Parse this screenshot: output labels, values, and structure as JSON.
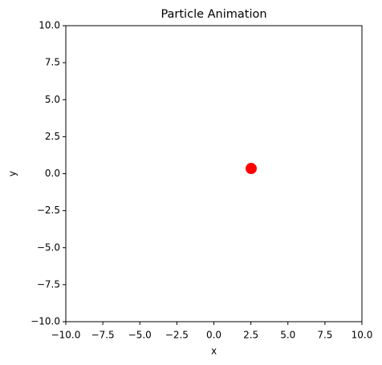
{
  "chart_data": {
    "type": "scatter",
    "title": "Particle Animation",
    "x_label": "x",
    "y_label": "y",
    "x": [
      2.52
    ],
    "values": [
      0.35
    ],
    "color": "#ff0000",
    "xlim": [
      -10,
      10
    ],
    "ylim": [
      -10,
      10
    ],
    "xticks": [
      {
        "value": -10,
        "label": "−10.0"
      },
      {
        "value": -7.5,
        "label": "−7.5"
      },
      {
        "value": -5,
        "label": "−5.0"
      },
      {
        "value": -2.5,
        "label": "−2.5"
      },
      {
        "value": 0,
        "label": "0.0"
      },
      {
        "value": 2.5,
        "label": "2.5"
      },
      {
        "value": 5,
        "label": "5.0"
      },
      {
        "value": 7.5,
        "label": "7.5"
      },
      {
        "value": 10,
        "label": "10.0"
      }
    ],
    "yticks": [
      {
        "value": -10,
        "label": "−10.0"
      },
      {
        "value": -7.5,
        "label": "−7.5"
      },
      {
        "value": -5,
        "label": "−5.0"
      },
      {
        "value": -2.5,
        "label": "−2.5"
      },
      {
        "value": 0,
        "label": "0.0"
      },
      {
        "value": 2.5,
        "label": "2.5"
      },
      {
        "value": 5,
        "label": "5.0"
      },
      {
        "value": 7.5,
        "label": "7.5"
      },
      {
        "value": 10,
        "label": "10.0"
      }
    ],
    "grid": false
  }
}
